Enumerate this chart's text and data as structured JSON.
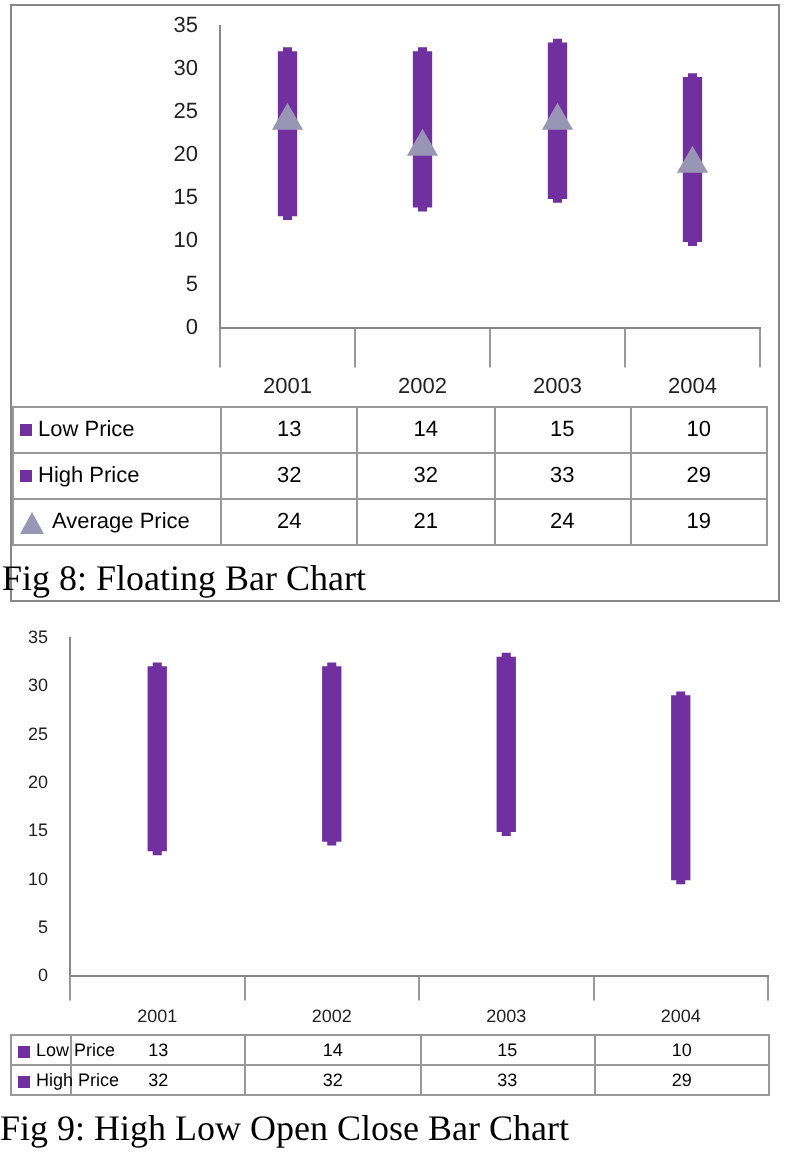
{
  "chart_data": [
    {
      "type": "bar",
      "categories": [
        "2001",
        "2002",
        "2003",
        "2004"
      ],
      "ylim": [
        0,
        35
      ],
      "yticks": [
        0,
        5,
        10,
        15,
        20,
        25,
        30,
        35
      ],
      "series": [
        {
          "color": "#7030a0",
          "base": [
            13,
            14,
            15,
            10
          ],
          "values": [
            19,
            18,
            18,
            19
          ]
        },
        {
          "name": "Low Price",
          "type": "scatter",
          "marker": "square",
          "color": "#7030a0",
          "values": [
            13,
            14,
            15,
            10
          ],
          "value_labels": [
            "13",
            "14",
            "15",
            "10"
          ]
        },
        {
          "name": "High Price",
          "type": "scatter",
          "marker": "square",
          "color": "#7030a0",
          "values": [
            32,
            32,
            33,
            29
          ],
          "value_labels": [
            "32",
            "32",
            "33",
            "29"
          ]
        },
        {
          "name": "Average Price",
          "type": "scatter",
          "marker": "triangle",
          "color": "#9896b4",
          "values": [
            24,
            21,
            24,
            19
          ],
          "value_labels": [
            "24",
            "21",
            "24",
            "19"
          ]
        }
      ],
      "legend": "bottom",
      "annotations": [
        "Fig 8: Floating Bar Chart"
      ]
    },
    {
      "type": "bar",
      "categories": [
        "2001",
        "2002",
        "2003",
        "2004"
      ],
      "ylim": [
        0,
        35
      ],
      "yticks": [
        0,
        5,
        10,
        15,
        20,
        25,
        30,
        35
      ],
      "series": [
        {
          "color": "#7030a0",
          "base": [
            13,
            14,
            15,
            10
          ],
          "values": [
            19,
            18,
            18,
            19
          ]
        },
        {
          "name": "Low Price",
          "type": "scatter",
          "marker": "square",
          "color": "#7030a0",
          "values": [
            13,
            14,
            15,
            10
          ],
          "value_labels": [
            "13",
            "14",
            "15",
            "10"
          ]
        },
        {
          "name": "High Price",
          "type": "scatter",
          "marker": "square",
          "color": "#7030a0",
          "values": [
            32,
            32,
            33,
            29
          ],
          "value_labels": [
            "32",
            "32",
            "33",
            "29"
          ]
        }
      ],
      "legend": "bottom",
      "annotations": [
        "Fig 9: High Low Open Close Bar Chart"
      ]
    }
  ]
}
